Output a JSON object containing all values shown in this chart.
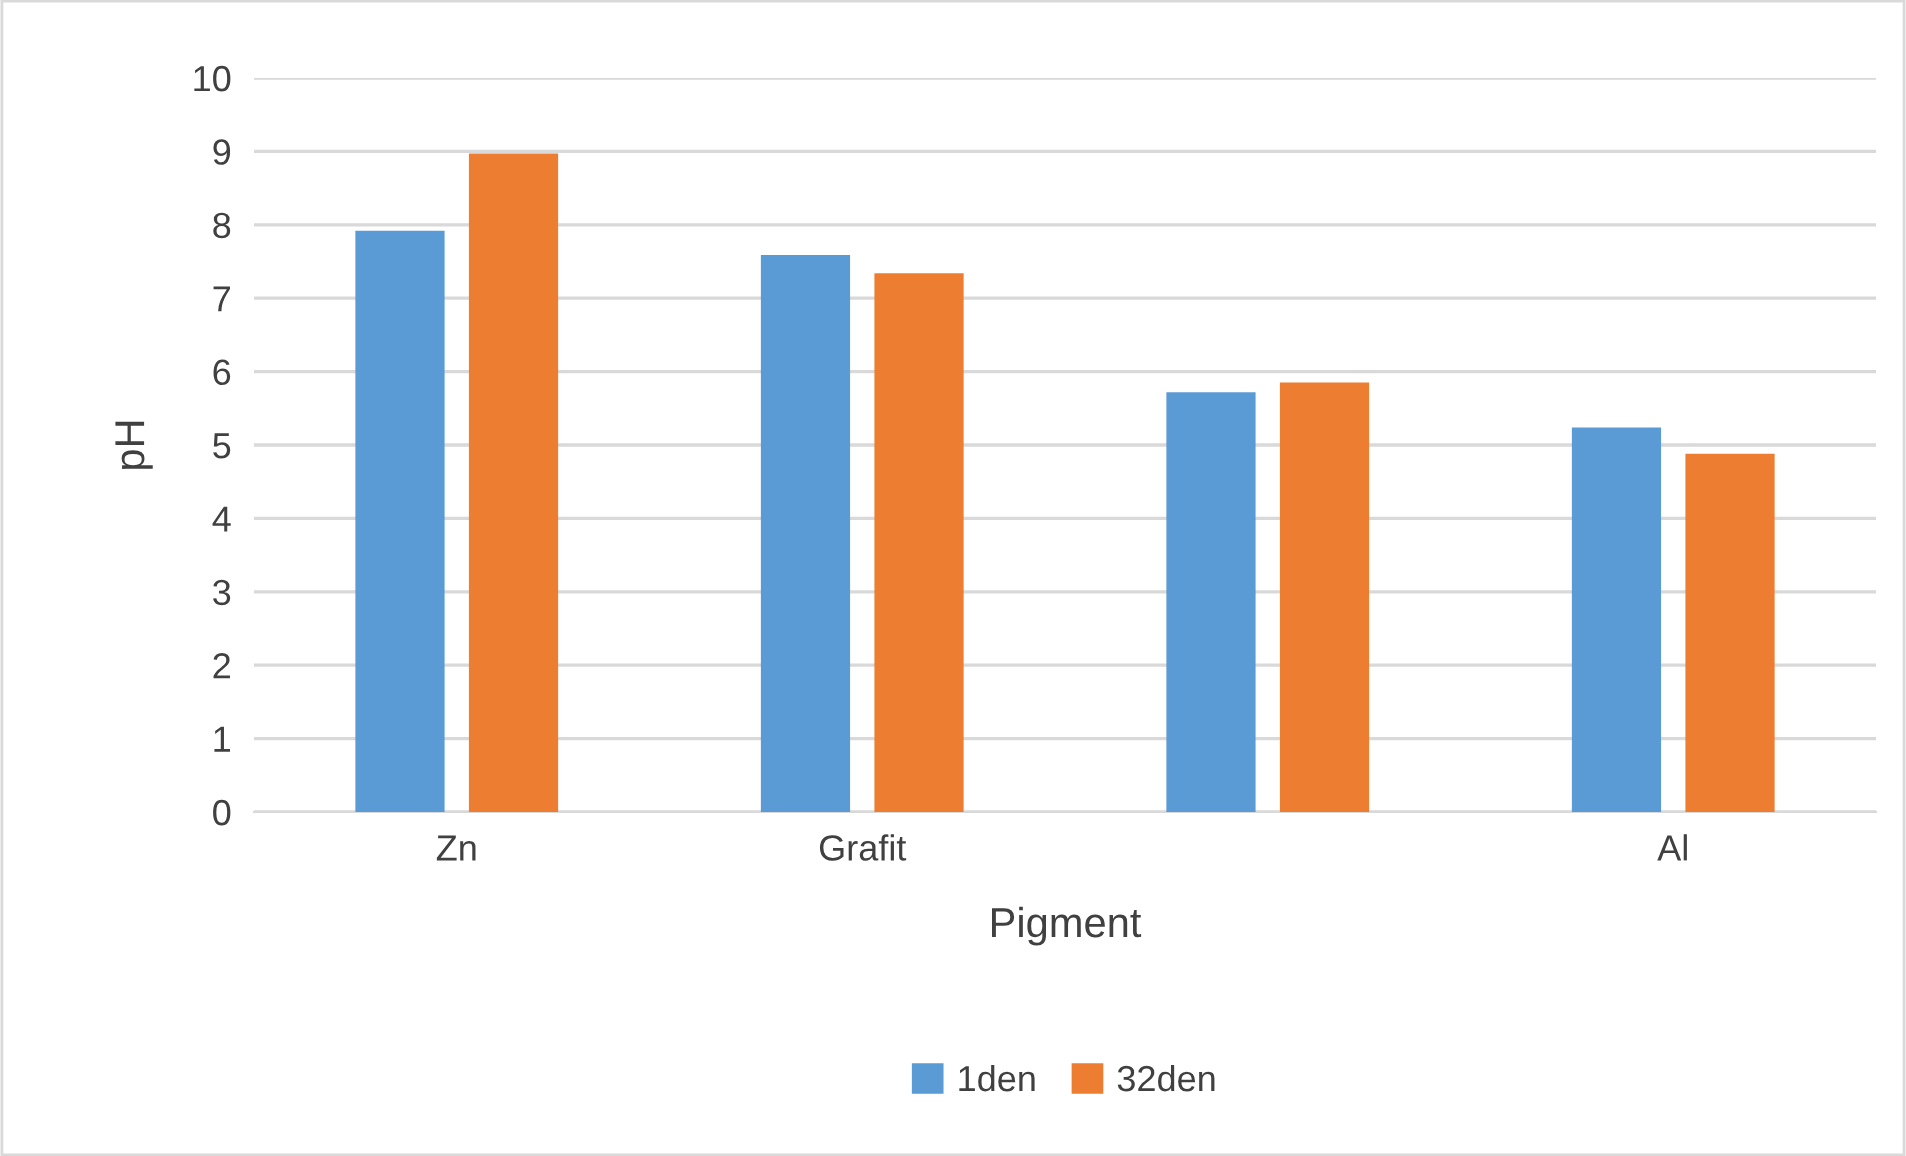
{
  "chart_data": {
    "type": "bar",
    "xlabel": "Pigment",
    "ylabel": "pH",
    "categories": [
      "Zn",
      "Grafit",
      null,
      "Al"
    ],
    "series": [
      {
        "name": "1den",
        "color": "#5b9bd5",
        "values": [
          7.92,
          7.59,
          5.72,
          5.24
        ]
      },
      {
        "name": "32den",
        "color": "#ed7d31",
        "values": [
          8.97,
          7.34,
          5.85,
          4.88
        ]
      }
    ],
    "ylim": [
      0,
      10
    ],
    "yticks": [
      0,
      1,
      2,
      3,
      4,
      5,
      6,
      7,
      8,
      9,
      10
    ],
    "grid": "y",
    "legend": "bottom"
  }
}
